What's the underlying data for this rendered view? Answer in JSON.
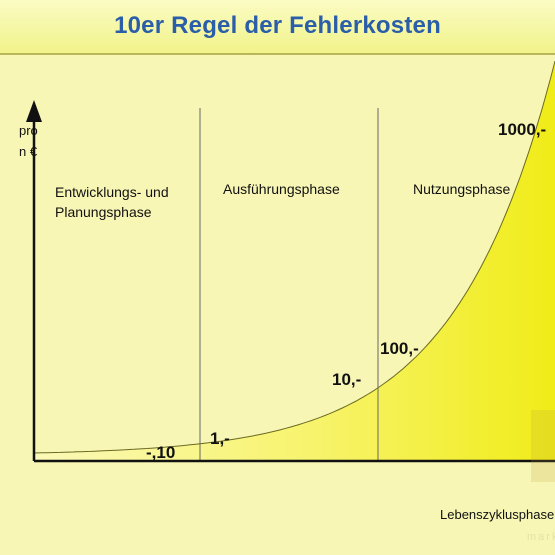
{
  "chart_data": {
    "type": "area",
    "title": "10er Regel der Fehlerkosten",
    "ylabel": "pro\nn €",
    "xlabel": "Lebenszyklusphasen",
    "phases": [
      "Entwicklungs- und\nPlanungsphase",
      "Ausführungsphase",
      "Nutzungsphase"
    ],
    "series": [
      {
        "points": [
          {
            "label": "-,10",
            "value": 0.1
          },
          {
            "label": "1,-",
            "value": 1
          },
          {
            "label": "10,-",
            "value": 10
          },
          {
            "label": "100,-",
            "value": 100
          },
          {
            "label": "1000,-",
            "value": 1000
          }
        ]
      }
    ],
    "colors": {
      "fill": "#f2ee1e",
      "fill_light": "#fbf9b0",
      "background": "#f8f6b4",
      "axis": "#111111",
      "divider": "#666666",
      "title": "#2b5ea8"
    },
    "grid": false
  },
  "watermark": "marketing"
}
